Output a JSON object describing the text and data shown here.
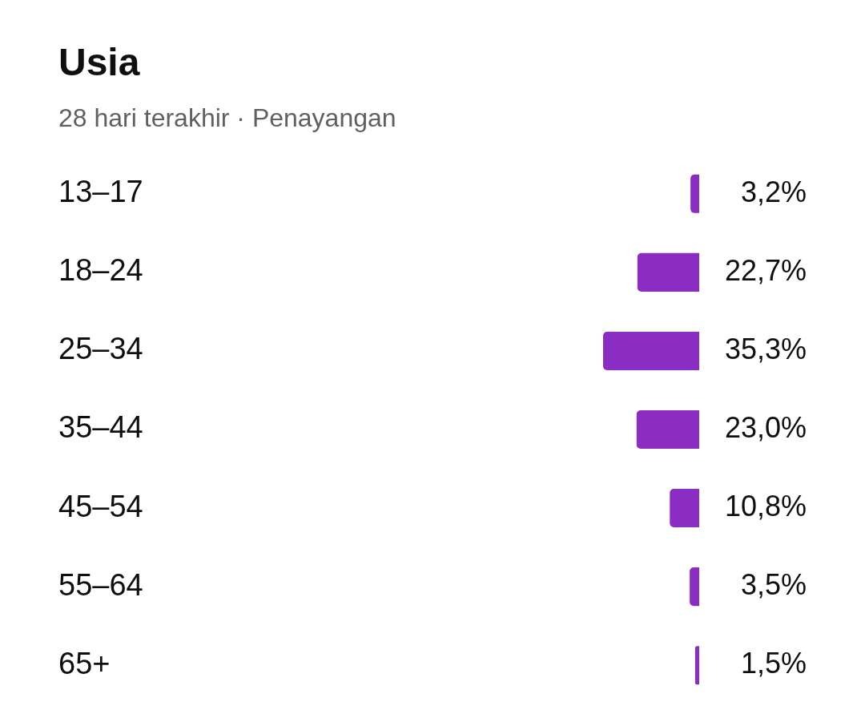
{
  "chart_data": {
    "type": "bar",
    "orientation": "horizontal",
    "title": "Usia",
    "subtitle": "28 hari terakhir · Penayangan",
    "categories": [
      "13–17",
      "18–24",
      "25–34",
      "35–44",
      "45–54",
      "55–64",
      "65+"
    ],
    "values": [
      3.2,
      22.7,
      35.3,
      23.0,
      10.8,
      3.5,
      1.5
    ],
    "value_labels": [
      "3,2%",
      "22,7%",
      "35,3%",
      "23,0%",
      "10,8%",
      "3,5%",
      "1,5%"
    ],
    "color": "#8b2dc3",
    "xlim": [
      35.3,
      0
    ],
    "tick_labels": "y"
  }
}
